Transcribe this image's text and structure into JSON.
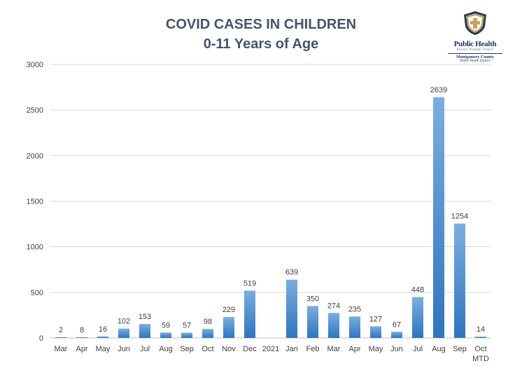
{
  "chart_data": {
    "type": "bar",
    "title": "COVID CASES IN CHILDREN",
    "subtitle": "0-11 Years of Age",
    "categories": [
      "Mar",
      "Apr",
      "May",
      "Jun",
      "Jul",
      "Aug",
      "Sep",
      "Oct",
      "Nov",
      "Dec",
      "2021",
      "Jan",
      "Feb",
      "Mar",
      "Apr",
      "May",
      "Jun",
      "Jul",
      "Aug",
      "Sep",
      "Oct MTD"
    ],
    "values": [
      2,
      8,
      16,
      102,
      153,
      59,
      57,
      98,
      229,
      519,
      null,
      639,
      350,
      274,
      235,
      127,
      67,
      448,
      2639,
      1254,
      14
    ],
    "ylim": [
      0,
      3000
    ],
    "yticks": [
      0,
      500,
      1000,
      1500,
      2000,
      2500,
      3000
    ],
    "grid": true,
    "bar_color_top": "#7aaee0",
    "bar_color_bottom": "#2e75c0"
  },
  "logo": {
    "name": "Public Health",
    "tagline": "Prevent. Promote. Protect.",
    "county": "Montgomery County",
    "district": "Public Health District"
  }
}
